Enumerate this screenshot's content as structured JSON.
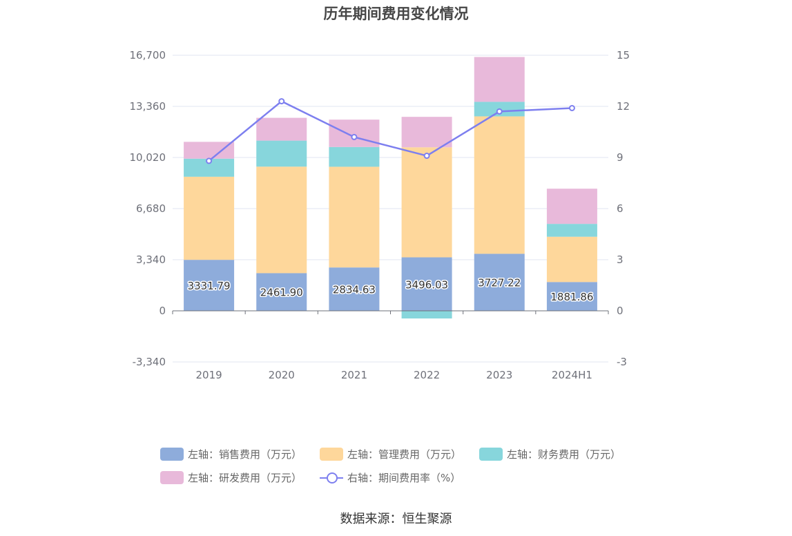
{
  "chart_data": {
    "type": "bar",
    "title": "历年期间费用变化情况",
    "categories": [
      "2019",
      "2020",
      "2021",
      "2022",
      "2023",
      "2024H1"
    ],
    "series": [
      {
        "name": "左轴：销售费用（万元）",
        "axis": "left",
        "kind": "bar",
        "color": "#8eacdb",
        "values": [
          3331.79,
          2461.9,
          2834.63,
          3496.03,
          3727.22,
          1881.86
        ]
      },
      {
        "name": "左轴：管理费用（万元）",
        "axis": "left",
        "kind": "bar",
        "color": "#fed79b",
        "values": [
          5430,
          6960,
          6580,
          7190,
          8980,
          2960
        ]
      },
      {
        "name": "左轴：财务费用（万元）",
        "axis": "left",
        "kind": "bar",
        "color": "#87d6dc",
        "values": [
          1180,
          1700,
          1290,
          -500,
          950,
          840
        ]
      },
      {
        "name": "左轴：研发费用（万元）",
        "axis": "left",
        "kind": "bar",
        "color": "#e8b9da",
        "values": [
          1100,
          1490,
          1790,
          1990,
          2930,
          2300
        ]
      },
      {
        "name": "右轴：期间费用率（%）",
        "axis": "right",
        "kind": "line",
        "color": "#7d7fef",
        "values": [
          8.8,
          12.3,
          10.2,
          9.1,
          11.7,
          11.9
        ]
      }
    ],
    "y_left": {
      "min": -3340,
      "max": 16700,
      "ticks": [
        "16,700",
        "13,360",
        "10,020",
        "6,680",
        "3,340",
        "0",
        "-3,340"
      ]
    },
    "y_right": {
      "min": -3,
      "max": 15,
      "ticks": [
        "15",
        "12",
        "9",
        "6",
        "3",
        "0",
        "-3"
      ]
    },
    "data_labels": [
      "3331.79",
      "2461.90",
      "2834.63",
      "3496.03",
      "3727.22",
      "1881.86"
    ],
    "legend_placement": "bottom",
    "grid": true
  },
  "source": "数据来源：恒生聚源"
}
